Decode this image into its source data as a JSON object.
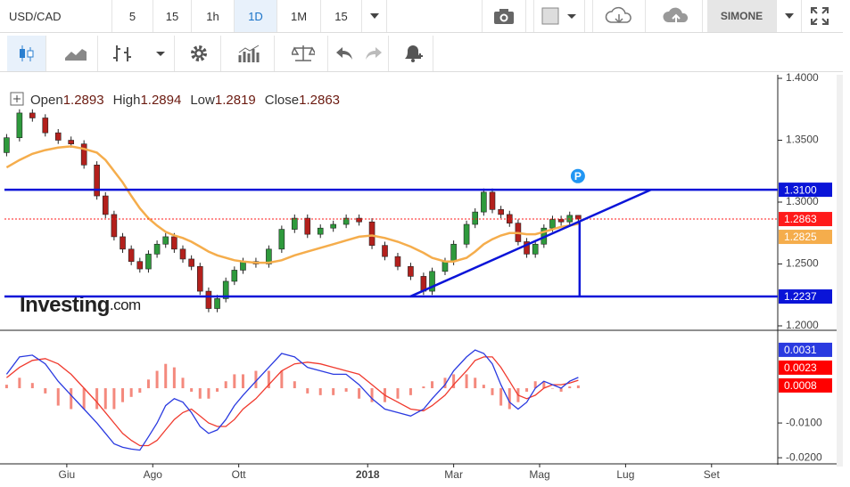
{
  "toolbar": {
    "symbol": "USD/CAD",
    "intervals": [
      "5",
      "15",
      "1h",
      "1D",
      "1M",
      "15"
    ],
    "active_interval": 3,
    "user": "SIMONE"
  },
  "chart_data": [
    {
      "type": "candlestick",
      "ohlc_labels": [
        "Open",
        "High",
        "Low",
        "Close"
      ],
      "x": [
        4.6,
        4.9,
        5.2,
        5.5,
        5.8,
        6.1,
        6.4,
        6.7,
        6.9,
        7.1,
        7.3,
        7.5,
        7.7,
        7.9,
        8.1,
        8.3,
        8.5,
        8.7,
        8.9,
        9.1,
        9.3,
        9.5,
        9.7,
        9.9,
        10.1,
        10.4,
        10.7,
        11.0,
        11.3,
        11.6,
        11.9,
        12.2,
        12.5,
        12.8,
        13.1,
        13.4,
        13.7,
        14.0,
        14.3,
        14.5,
        14.8,
        15.0,
        15.3,
        15.5,
        15.7,
        15.9,
        16.1,
        16.3,
        16.5,
        16.7,
        16.9,
        17.1,
        17.3,
        17.5,
        17.7,
        17.9
      ],
      "open": [
        1.34,
        1.352,
        1.372,
        1.368,
        1.356,
        1.35,
        1.347,
        1.33,
        1.305,
        1.29,
        1.272,
        1.262,
        1.252,
        1.246,
        1.258,
        1.266,
        1.272,
        1.262,
        1.254,
        1.248,
        1.228,
        1.214,
        1.222,
        1.236,
        1.245,
        1.252,
        1.25,
        1.262,
        1.278,
        1.287,
        1.274,
        1.279,
        1.282,
        1.287,
        1.284,
        1.265,
        1.256,
        1.248,
        1.24,
        1.228,
        1.244,
        1.252,
        1.266,
        1.282,
        1.292,
        1.308,
        1.294,
        1.29,
        1.283,
        1.268,
        1.258,
        1.266,
        1.279,
        1.286,
        1.284,
        1.2893
      ],
      "high": [
        1.355,
        1.375,
        1.375,
        1.371,
        1.359,
        1.353,
        1.35,
        1.333,
        1.308,
        1.293,
        1.275,
        1.265,
        1.255,
        1.261,
        1.269,
        1.275,
        1.275,
        1.265,
        1.257,
        1.251,
        1.231,
        1.225,
        1.239,
        1.248,
        1.255,
        1.255,
        1.265,
        1.281,
        1.29,
        1.29,
        1.282,
        1.285,
        1.29,
        1.29,
        1.287,
        1.268,
        1.259,
        1.251,
        1.243,
        1.247,
        1.255,
        1.269,
        1.285,
        1.295,
        1.311,
        1.311,
        1.297,
        1.293,
        1.286,
        1.271,
        1.269,
        1.282,
        1.289,
        1.289,
        1.2923,
        1.2894
      ],
      "low": [
        1.337,
        1.349,
        1.365,
        1.353,
        1.347,
        1.344,
        1.327,
        1.302,
        1.287,
        1.269,
        1.259,
        1.249,
        1.243,
        1.243,
        1.255,
        1.263,
        1.259,
        1.251,
        1.245,
        1.225,
        1.211,
        1.211,
        1.219,
        1.233,
        1.242,
        1.247,
        1.247,
        1.259,
        1.275,
        1.271,
        1.271,
        1.276,
        1.279,
        1.281,
        1.262,
        1.253,
        1.245,
        1.237,
        1.225,
        1.225,
        1.241,
        1.249,
        1.263,
        1.279,
        1.289,
        1.291,
        1.287,
        1.28,
        1.265,
        1.255,
        1.255,
        1.263,
        1.276,
        1.281,
        1.281,
        1.2819
      ],
      "close": [
        1.352,
        1.372,
        1.368,
        1.356,
        1.35,
        1.347,
        1.33,
        1.305,
        1.29,
        1.272,
        1.262,
        1.252,
        1.246,
        1.258,
        1.266,
        1.272,
        1.262,
        1.254,
        1.248,
        1.228,
        1.214,
        1.222,
        1.236,
        1.245,
        1.252,
        1.25,
        1.262,
        1.278,
        1.287,
        1.274,
        1.279,
        1.282,
        1.287,
        1.284,
        1.265,
        1.256,
        1.248,
        1.24,
        1.228,
        1.244,
        1.252,
        1.266,
        1.282,
        1.292,
        1.308,
        1.294,
        1.29,
        1.283,
        1.268,
        1.258,
        1.266,
        1.279,
        1.286,
        1.284,
        1.2893,
        1.2863
      ],
      "up_color": "#2e9a3c",
      "down_color": "#b3201c",
      "moving_average": {
        "color": "#f5ad4c",
        "values": [
          1.328,
          1.334,
          1.339,
          1.342,
          1.344,
          1.345,
          1.343,
          1.34,
          1.334,
          1.325,
          1.316,
          1.305,
          1.295,
          1.287,
          1.281,
          1.276,
          1.273,
          1.271,
          1.268,
          1.264,
          1.26,
          1.257,
          1.255,
          1.253,
          1.252,
          1.251,
          1.251,
          1.253,
          1.257,
          1.26,
          1.263,
          1.266,
          1.269,
          1.272,
          1.273,
          1.271,
          1.268,
          1.264,
          1.259,
          1.255,
          1.252,
          1.252,
          1.255,
          1.26,
          1.266,
          1.27,
          1.273,
          1.275,
          1.275,
          1.274,
          1.274,
          1.276,
          1.278,
          1.28,
          1.281,
          1.2825
        ]
      },
      "price_line_color": "#ff1a1a",
      "xlim": [
        4.55,
        22.54
      ],
      "ylim": [
        1.2,
        1.4
      ],
      "yticks": [
        {
          "value": 1.2,
          "label": "1.2000"
        },
        {
          "value": 1.25,
          "label": "1.2500"
        },
        {
          "value": 1.3,
          "label": "1.3000"
        },
        {
          "value": 1.35,
          "label": "1.3500"
        },
        {
          "value": 1.4,
          "label": "1.4000"
        }
      ],
      "hlines": [
        {
          "value": 1.31,
          "label": "1.3100",
          "color": "#0a14d8"
        },
        {
          "value": 1.2237,
          "color": "#0a14d8"
        }
      ],
      "lines": [
        {
          "x": [
            13.99,
            19.59
          ],
          "y": [
            1.2237,
            1.31
          ],
          "color": "#0a14d8"
        },
        {
          "x": [
            17.93,
            17.93
          ],
          "y": [
            1.2237,
            1.2849
          ],
          "color": "#0a14d8"
        }
      ],
      "marker": {
        "x": 17.89,
        "y": 1.321,
        "label": "P",
        "color": "#2196f3"
      },
      "watermark": [
        "Investing",
        ".com"
      ]
    },
    {
      "type": "macd",
      "x": [
        4.6,
        4.9,
        5.2,
        5.5,
        5.8,
        6.1,
        6.4,
        6.7,
        6.9,
        7.1,
        7.3,
        7.5,
        7.7,
        7.9,
        8.1,
        8.3,
        8.5,
        8.7,
        8.9,
        9.1,
        9.3,
        9.5,
        9.7,
        9.9,
        10.1,
        10.4,
        10.7,
        11.0,
        11.3,
        11.6,
        11.9,
        12.2,
        12.5,
        12.8,
        13.1,
        13.4,
        13.7,
        14.0,
        14.3,
        14.5,
        14.8,
        15.0,
        15.3,
        15.5,
        15.7,
        15.9,
        16.1,
        16.3,
        16.5,
        16.7,
        16.9,
        17.1,
        17.3,
        17.5,
        17.7,
        17.9
      ],
      "macd": {
        "color": "#2a3ae0",
        "values": [
          0.004,
          0.009,
          0.0095,
          0.007,
          0.002,
          -0.002,
          -0.006,
          -0.01,
          -0.013,
          -0.016,
          -0.017,
          -0.0175,
          -0.0178,
          -0.014,
          -0.01,
          -0.005,
          -0.003,
          -0.004,
          -0.007,
          -0.011,
          -0.013,
          -0.012,
          -0.009,
          -0.005,
          -0.002,
          0.002,
          0.006,
          0.01,
          0.009,
          0.006,
          0.005,
          0.004,
          0.004,
          0.001,
          -0.003,
          -0.006,
          -0.007,
          -0.008,
          -0.006,
          -0.003,
          0.001,
          0.005,
          0.009,
          0.011,
          0.01,
          0.007,
          0.001,
          -0.004,
          -0.006,
          -0.004,
          0.0,
          0.002,
          0.001,
          0.0,
          0.002,
          0.0031
        ]
      },
      "signal": {
        "color": "#f03a2e",
        "values": [
          0.003,
          0.006,
          0.008,
          0.0085,
          0.007,
          0.004,
          0.0,
          -0.004,
          -0.007,
          -0.01,
          -0.013,
          -0.015,
          -0.0165,
          -0.0165,
          -0.015,
          -0.012,
          -0.009,
          -0.007,
          -0.006,
          -0.008,
          -0.01,
          -0.011,
          -0.011,
          -0.009,
          -0.006,
          -0.003,
          0.001,
          0.005,
          0.007,
          0.0075,
          0.007,
          0.006,
          0.005,
          0.004,
          0.001,
          -0.002,
          -0.004,
          -0.006,
          -0.0065,
          -0.005,
          -0.002,
          0.001,
          0.005,
          0.008,
          0.009,
          0.009,
          0.006,
          0.002,
          -0.002,
          -0.003,
          -0.002,
          0.0,
          0.001,
          0.001,
          0.0015,
          0.0023
        ]
      },
      "histogram": {
        "color": "#f4897d",
        "badge_color": "#ff0000",
        "values": [
          0.001,
          0.003,
          0.0015,
          -0.0015,
          -0.005,
          -0.006,
          -0.006,
          -0.006,
          -0.006,
          -0.006,
          -0.004,
          -0.0025,
          -0.0013,
          0.0025,
          0.005,
          0.007,
          0.006,
          0.003,
          -0.001,
          -0.003,
          -0.003,
          -0.001,
          0.002,
          0.004,
          0.004,
          0.005,
          0.005,
          0.005,
          0.002,
          -0.0015,
          -0.002,
          -0.002,
          -0.001,
          -0.003,
          -0.004,
          -0.004,
          -0.003,
          -0.002,
          0.0005,
          0.002,
          0.003,
          0.004,
          0.004,
          0.003,
          0.001,
          -0.002,
          -0.005,
          -0.006,
          -0.004,
          -0.001,
          0.002,
          0.002,
          0.0,
          -0.001,
          0.0005,
          0.0008
        ]
      },
      "xlim": [
        4.55,
        22.54
      ],
      "ylim": [
        -0.0215,
        0.0164
      ],
      "yticks": [
        {
          "value": -0.02,
          "label": "-0.0200"
        },
        {
          "value": -0.01,
          "label": "-0.0100"
        }
      ],
      "xticks": [
        {
          "value": 6,
          "label": "Giu"
        },
        {
          "value": 8,
          "label": "Ago"
        },
        {
          "value": 10,
          "label": "Ott"
        },
        {
          "value": 13,
          "label": "2018"
        },
        {
          "value": 15,
          "label": "Mar"
        },
        {
          "value": 17,
          "label": "Mag"
        },
        {
          "value": 19,
          "label": "Lug"
        },
        {
          "value": 21,
          "label": "Set"
        }
      ]
    }
  ]
}
